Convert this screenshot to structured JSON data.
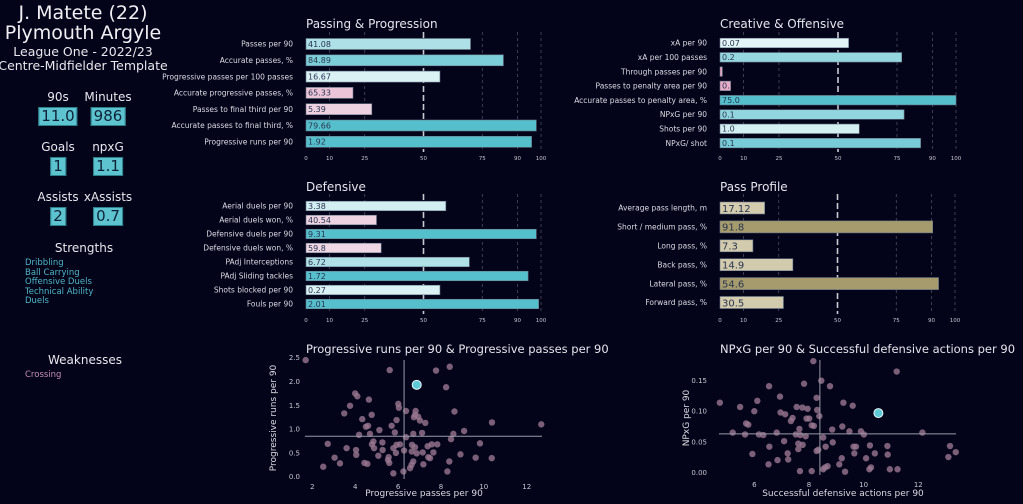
{
  "header": {
    "player": "J. Matete (22)",
    "club": "Plymouth Argyle",
    "league": "League One - 2022/23",
    "template": "Centre-Midfielder Template"
  },
  "stats": [
    {
      "label": "90s",
      "value": "11.0"
    },
    {
      "label": "Minutes",
      "value": "986"
    },
    {
      "label": "Goals",
      "value": "1"
    },
    {
      "label": "npxG",
      "value": "1.1"
    },
    {
      "label": "Assists",
      "value": "2"
    },
    {
      "label": "xAssists",
      "value": "0.7"
    }
  ],
  "strengths": {
    "title": "Strengths",
    "items": [
      "Dribbling",
      "Ball Carrying",
      "Offensive Duels",
      "Technical Ability",
      "Duels"
    ]
  },
  "weaknesses": {
    "title": "Weaknesses",
    "items": [
      "Crossing"
    ]
  },
  "colors": {
    "background": "#03031a",
    "high": "#55bfcc",
    "mid": "#f4fbfc",
    "low": "#e7a6c3",
    "profile_low": "#d3cbae",
    "profile_high": "#a69b6c",
    "player_point": "#5fcad6",
    "other_points": "#9a7790"
  },
  "chart_data": [
    {
      "type": "bar",
      "orientation": "horizontal",
      "title": "Passing & Progression",
      "categories": [
        "Passes per 90",
        "Accurate passes, %",
        "Progressive passes per 100 passes",
        "Accurate progressive passes, %",
        "Passes to final third per 90",
        "Accurate passes to final third, %",
        "Progressive runs per 90"
      ],
      "value_labels": [
        "41.08",
        "84.89",
        "16.67",
        "65.33",
        "5.39",
        "79.66",
        "1.92"
      ],
      "percentiles": [
        70,
        84,
        57,
        20,
        28,
        98,
        96
      ],
      "xticks": [
        "0",
        "10",
        "25",
        "50",
        "75",
        "90",
        "100"
      ],
      "xlim": [
        0,
        100
      ],
      "reference_line": 50
    },
    {
      "type": "bar",
      "orientation": "horizontal",
      "title": "Creative & Offensive",
      "categories": [
        "xA per 90",
        "xA per 100 passes",
        "Through passes per 90",
        "Passes to penalty area per 90",
        "Accurate passes to penalty area, %",
        "NPxG per 90",
        "Shots per 90",
        "NPxG/ shot"
      ],
      "value_labels": [
        "0.07",
        "0.2",
        "",
        "0.",
        "75.0",
        "0.1",
        "1.0",
        "0.1"
      ],
      "percentiles": [
        54.5,
        77,
        1,
        4.5,
        100,
        78,
        59,
        85
      ],
      "xticks": [
        "0",
        "10",
        "25",
        "50",
        "75",
        "90",
        "100"
      ],
      "xlim": [
        0,
        100
      ],
      "reference_line": 50
    },
    {
      "type": "bar",
      "orientation": "horizontal",
      "title": "Defensive",
      "categories": [
        "Aerial duels per 90",
        "Aerial duels won, %",
        "Defensive duels per 90",
        "Defensive duels won, %",
        "PAdj Interceptions",
        "PAdj Sliding tackles",
        "Shots blocked per 90",
        "Fouls per 90"
      ],
      "value_labels": [
        "3.38",
        "40.54",
        "9.31",
        "59.8",
        "6.72",
        "1.72",
        "0.27",
        "2.01"
      ],
      "percentiles": [
        59.5,
        30,
        98,
        32,
        69.5,
        94.5,
        57,
        99
      ],
      "xticks": [
        "0",
        "10",
        "25",
        "50",
        "75",
        "90",
        "100"
      ],
      "xlim": [
        0,
        100
      ],
      "reference_line": 50
    },
    {
      "type": "bar",
      "orientation": "horizontal",
      "title": "Pass Profile",
      "categories": [
        "Average pass length, m",
        "Short / medium pass, %",
        "Long pass, %",
        "Back pass, %",
        "Lateral pass, %",
        "Forward pass, %"
      ],
      "value_labels": [
        "17.12",
        "91.8",
        "7.3",
        "14.9",
        "54.6",
        "30.5"
      ],
      "percentiles": [
        19,
        90.5,
        14,
        31,
        93,
        27
      ],
      "xticks": [
        "0",
        "10",
        "25",
        "50",
        "75",
        "90",
        "100"
      ],
      "xlim": [
        0,
        100
      ],
      "reference_line": 50
    },
    {
      "type": "scatter",
      "title": "Progressive runs per 90 & Progressive passes per 90",
      "xlabel": "Progressive passes per 90",
      "ylabel": "Progressive runs per 90",
      "xticks": [
        "2",
        "4",
        "6",
        "8",
        "10",
        "12"
      ],
      "yticks": [
        "0.0",
        "0.5",
        "1.0",
        "1.5",
        "2.0",
        "2.5"
      ],
      "xlim": [
        1.6,
        12.8
      ],
      "ylim": [
        0,
        2.5
      ],
      "median_x": 6.28,
      "median_y": 0.85,
      "player": [
        6.87,
        1.93
      ],
      "points": [
        [
          1.69,
          2.45
        ],
        [
          5.61,
          2.24
        ],
        [
          7.77,
          2.23
        ],
        [
          8.41,
          2.31
        ],
        [
          8.24,
          1.88
        ],
        [
          3.76,
          1.49
        ],
        [
          4.0,
          1.75
        ],
        [
          4.1,
          1.69
        ],
        [
          3.49,
          1.33
        ],
        [
          4.64,
          1.62
        ],
        [
          4.77,
          1.3
        ],
        [
          4.33,
          1.21
        ],
        [
          4.5,
          1.05
        ],
        [
          4.6,
          1.07
        ],
        [
          6.01,
          1.53
        ],
        [
          6.04,
          1.45
        ],
        [
          6.37,
          1.38
        ],
        [
          6.82,
          1.38
        ],
        [
          6.79,
          1.3
        ],
        [
          6.74,
          1.25
        ],
        [
          6.94,
          1.26
        ],
        [
          7.02,
          1.18
        ],
        [
          7.27,
          1.13
        ],
        [
          8.63,
          1.37
        ],
        [
          10.38,
          1.14
        ],
        [
          12.68,
          1.1
        ],
        [
          5.93,
          1.19
        ],
        [
          5.7,
          1.07
        ],
        [
          5.85,
          0.93
        ],
        [
          5.13,
          0.98
        ],
        [
          4.18,
          0.88
        ],
        [
          4.69,
          0.9
        ],
        [
          4.85,
          0.74
        ],
        [
          2.72,
          0.69
        ],
        [
          4.04,
          0.56
        ],
        [
          4.78,
          0.68
        ],
        [
          4.88,
          0.6
        ],
        [
          5.27,
          0.72
        ],
        [
          5.78,
          0.6
        ],
        [
          5.93,
          0.67
        ],
        [
          6.09,
          0.68
        ],
        [
          6.37,
          0.83
        ],
        [
          6.71,
          0.9
        ],
        [
          7.12,
          0.92
        ],
        [
          6.65,
          0.67
        ],
        [
          6.79,
          0.62
        ],
        [
          6.28,
          0.55
        ],
        [
          6.64,
          0.53
        ],
        [
          6.87,
          0.49
        ],
        [
          7.15,
          0.51
        ],
        [
          7.38,
          0.64
        ],
        [
          7.57,
          0.68
        ],
        [
          7.83,
          0.68
        ],
        [
          7.65,
          0.51
        ],
        [
          7.41,
          0.41
        ],
        [
          7.49,
          0.39
        ],
        [
          8.58,
          0.9
        ],
        [
          8.47,
          0.79
        ],
        [
          9.08,
          0.96
        ],
        [
          9.82,
          0.7
        ],
        [
          8.91,
          0.47
        ],
        [
          9.62,
          0.4
        ],
        [
          10.37,
          0.39
        ],
        [
          5.28,
          0.56
        ],
        [
          5.08,
          0.44
        ],
        [
          5.56,
          0.41
        ],
        [
          5.59,
          0.29
        ],
        [
          5.53,
          0.35
        ],
        [
          5.9,
          0.5
        ],
        [
          4.05,
          0.46
        ],
        [
          3.04,
          0.4
        ],
        [
          3.29,
          0.28
        ],
        [
          2.51,
          0.21
        ],
        [
          4.43,
          0.29
        ],
        [
          4.57,
          0.27
        ],
        [
          6.71,
          0.32
        ],
        [
          6.63,
          0.25
        ],
        [
          6.56,
          0.18
        ],
        [
          7.18,
          0.26
        ],
        [
          8.39,
          0.32
        ],
        [
          8.3,
          0.11
        ],
        [
          5.78,
          0.07
        ],
        [
          6.25,
          0.11
        ],
        [
          3.6,
          0.6
        ]
      ]
    },
    {
      "type": "scatter",
      "title": "NPxG per 90 & Successful defensive actions per 90",
      "xlabel": "Successful defensive actions per 90",
      "ylabel": "NPxG per 90",
      "xticks": [
        "6",
        "8",
        "10",
        "12"
      ],
      "yticks": [
        "0.00",
        "0.05",
        "0.10",
        "0.15"
      ],
      "xlim": [
        4.6,
        13.5
      ],
      "ylim": [
        0,
        0.185
      ],
      "median_x": 8.4,
      "median_y": 0.063,
      "player": [
        10.54,
        0.097
      ],
      "points": [
        [
          4.74,
          0.114
        ],
        [
          5.48,
          0.107
        ],
        [
          5.21,
          0.065
        ],
        [
          5.7,
          0.08
        ],
        [
          5.78,
          0.078
        ],
        [
          5.66,
          0.062
        ],
        [
          6.0,
          0.1
        ],
        [
          6.11,
          0.117
        ],
        [
          6.17,
          0.062
        ],
        [
          6.33,
          0.061
        ],
        [
          5.93,
          0.03
        ],
        [
          6.54,
          0.141
        ],
        [
          6.55,
          0.042
        ],
        [
          6.52,
          0.013
        ],
        [
          6.94,
          0.124
        ],
        [
          6.82,
          0.065
        ],
        [
          6.85,
          0.02
        ],
        [
          6.96,
          0.098
        ],
        [
          7.13,
          0.095
        ],
        [
          7.09,
          0.051
        ],
        [
          7.22,
          0.031
        ],
        [
          7.24,
          0.021
        ],
        [
          7.34,
          0.084
        ],
        [
          7.4,
          0.089
        ],
        [
          7.55,
          0.107
        ],
        [
          7.52,
          0.062
        ],
        [
          7.65,
          0.071
        ],
        [
          7.68,
          0.061
        ],
        [
          7.61,
          0.047
        ],
        [
          7.76,
          0.106
        ],
        [
          7.77,
          0.045
        ],
        [
          7.91,
          0.088
        ],
        [
          7.95,
          0.104
        ],
        [
          8.01,
          0.088
        ],
        [
          7.88,
          0.059
        ],
        [
          7.61,
          0.038
        ],
        [
          7.82,
          0.145
        ],
        [
          8.1,
          0.077
        ],
        [
          8.18,
          0.076
        ],
        [
          8.16,
          0.182
        ],
        [
          8.28,
          0.122
        ],
        [
          8.3,
          0.102
        ],
        [
          8.38,
          0.092
        ],
        [
          8.34,
          0.037
        ],
        [
          8.28,
          0.035
        ],
        [
          8.1,
          0.002
        ],
        [
          8.45,
          0.15
        ],
        [
          8.52,
          0.057
        ],
        [
          8.61,
          0.042
        ],
        [
          8.52,
          0.005
        ],
        [
          8.59,
          0.008
        ],
        [
          8.68,
          0.01
        ],
        [
          8.77,
          0.141
        ],
        [
          8.85,
          0.07
        ],
        [
          8.87,
          0.049
        ],
        [
          9.11,
          0.013
        ],
        [
          9.2,
          0.023
        ],
        [
          9.22,
          0.075
        ],
        [
          9.26,
          0.114
        ],
        [
          9.32,
          0.001
        ],
        [
          9.48,
          0.067
        ],
        [
          9.6,
          0.109
        ],
        [
          9.63,
          0.042
        ],
        [
          9.66,
          0.031
        ],
        [
          9.72,
          0.042
        ],
        [
          9.9,
          0.067
        ],
        [
          10.01,
          0.062
        ],
        [
          10.09,
          0.023
        ],
        [
          10.23,
          0.044
        ],
        [
          10.27,
          0.008
        ],
        [
          10.21,
          0.005
        ],
        [
          10.41,
          0.031
        ],
        [
          11.21,
          0.165
        ],
        [
          10.87,
          0.043
        ],
        [
          10.88,
          0.029
        ],
        [
          10.96,
          0.005
        ],
        [
          11.24,
          0.005
        ],
        [
          12.15,
          0.065
        ],
        [
          13.1,
          0.025
        ],
        [
          13.16,
          0.043
        ],
        [
          13.37,
          0.033
        ],
        [
          7.67,
          0.002
        ]
      ]
    }
  ]
}
